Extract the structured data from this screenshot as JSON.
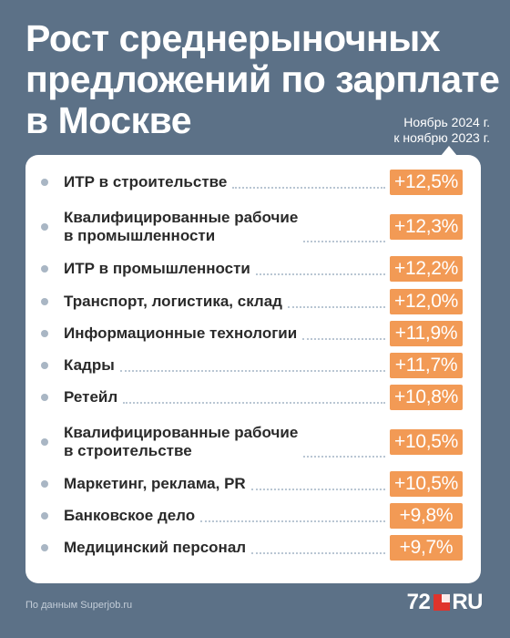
{
  "title_lines": [
    "Рост среднерыночных",
    "предложений по зарплате",
    "в Москве"
  ],
  "subtitle_lines": [
    "Ноябрь 2024 г.",
    "к ноябрю 2023 г."
  ],
  "source": "По данным Superjob.ru",
  "logo": {
    "number": "72",
    "suffix": "RU",
    "square_color": "#e0342c"
  },
  "colors": {
    "background": "#5c7187",
    "card": "#ffffff",
    "value_badge": "#f29a55",
    "bullet": "#a9b6c4"
  },
  "chart_data": {
    "type": "bar",
    "categories": [
      "ИТР в строительстве",
      "Квалифицированные рабочие в промышленности",
      "ИТР в промышленности",
      "Транспорт, логистика, склад",
      "Информационные технологии",
      "Кадры",
      "Ретейл",
      "Квалифицированные рабочие в строительстве",
      "Маркетинг, реклама, PR",
      "Банковское дело",
      "Медицинский персонал"
    ],
    "values": [
      12.5,
      12.3,
      12.2,
      12.0,
      11.9,
      11.7,
      10.8,
      10.5,
      10.5,
      9.8,
      9.7
    ],
    "rows": [
      {
        "label_lines": [
          "ИТР в строительстве"
        ],
        "value_text": "+12,5%"
      },
      {
        "label_lines": [
          "Квалифицированные рабочие",
          "в промышленности"
        ],
        "value_text": "+12,3%"
      },
      {
        "label_lines": [
          "ИТР в промышленности"
        ],
        "value_text": "+12,2%"
      },
      {
        "label_lines": [
          "Транспорт, логистика, склад"
        ],
        "value_text": "+12,0%"
      },
      {
        "label_lines": [
          "Информационные технологии"
        ],
        "value_text": "+11,9%"
      },
      {
        "label_lines": [
          "Кадры"
        ],
        "value_text": "+11,7%"
      },
      {
        "label_lines": [
          "Ретейл"
        ],
        "value_text": "+10,8%"
      },
      {
        "label_lines": [
          "Квалифицированные рабочие",
          "в строительстве"
        ],
        "value_text": "+10,5%"
      },
      {
        "label_lines": [
          "Маркетинг, реклама, PR"
        ],
        "value_text": "+10,5%"
      },
      {
        "label_lines": [
          "Банковское дело"
        ],
        "value_text": "+9,8%"
      },
      {
        "label_lines": [
          "Медицинский персонал"
        ],
        "value_text": "+9,7%"
      }
    ]
  }
}
